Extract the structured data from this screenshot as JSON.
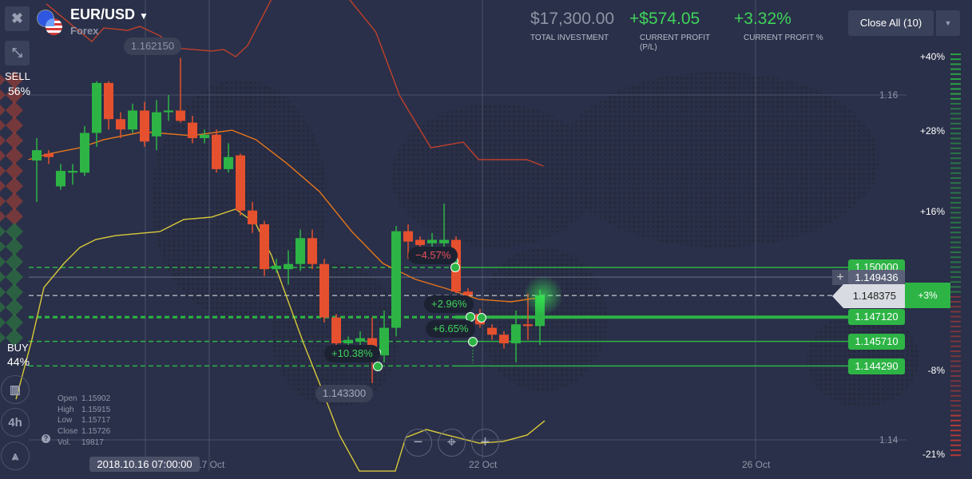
{
  "asset": {
    "name": "EUR/USD",
    "category": "Forex",
    "icon": "eur-usd-flags-icon"
  },
  "stats": {
    "total_investment": "$17,300.00",
    "total_investment_label": "TOTAL INVESTMENT",
    "current_profit": "+$574.05",
    "current_profit_label_1": "CURRENT PROFIT",
    "current_profit_label_2": "(P/L)",
    "current_profit_pct": "+3.32%",
    "current_profit_pct_label": "CURRENT PROFIT %"
  },
  "close_all": {
    "label": "Close All (10)",
    "dropdown_icon": "caret-down-icon"
  },
  "sentiment": {
    "sell_label": "SELL",
    "sell_pct": "56%",
    "buy_label": "BUY",
    "buy_pct": "44%",
    "sell_fraction": 0.56,
    "buy_fraction": 0.44
  },
  "colors": {
    "up": "#2db445",
    "down": "#e5502e",
    "ema": "#e8761c",
    "upper_band": "#c0402c",
    "lower_band": "#d9c93a",
    "background": "#2a3049"
  },
  "sidebar_tools": {
    "chart_type": "candles-chart-icon",
    "timeframe": "4h",
    "drawing": "compass-drawing-icon"
  },
  "ohlc": {
    "open_label": "Open",
    "open": "1.15902",
    "high_label": "High",
    "high": "1.15915",
    "low_label": "Low",
    "low": "1.15717",
    "close_label": "Close",
    "close": "1.15726",
    "vol_label": "Vol.",
    "vol": "19817"
  },
  "crosshair_time": "2018.10.16 07:00:00",
  "x_axis": {
    "labels": [
      "17 Oct",
      "22 Oct",
      "26 Oct"
    ]
  },
  "y_axis": {
    "labels": [
      "1.16",
      "1.14"
    ],
    "values": [
      1.16,
      1.14
    ]
  },
  "high_label": "1.162150",
  "low_label": "1.143300",
  "price_levels": [
    {
      "label": "1.150000",
      "value": 1.15,
      "type": "deal"
    },
    {
      "label": "1.149436",
      "value": 1.149436,
      "type": "crosshair"
    },
    {
      "label": "1.147120",
      "value": 1.14712,
      "type": "deal"
    },
    {
      "label": "1.145710",
      "value": 1.14571,
      "type": "deal"
    },
    {
      "label": "1.144290",
      "value": 1.14429,
      "type": "deal"
    }
  ],
  "current_price": {
    "label": "1.148375",
    "value": 1.148375,
    "profit": "+3%"
  },
  "profit_scale": [
    "+40%",
    "+28%",
    "+16%",
    "-8%",
    "-21%"
  ],
  "deals": [
    {
      "label": "−4.57%",
      "color": "#e5505a"
    },
    {
      "label": "+2.96%",
      "color": "#3fd35a"
    },
    {
      "label": "+6.65%",
      "color": "#3fd35a"
    },
    {
      "label": "+10.38%",
      "color": "#3fd35a"
    }
  ],
  "zoom_controls": {
    "zoom_out": "−",
    "center": "crosshair-center-icon",
    "zoom_in": "+"
  },
  "chart_data": {
    "type": "candlestick",
    "ohlc": [
      [
        1.1562,
        1.1575,
        1.1538,
        1.1568
      ],
      [
        1.1566,
        1.1568,
        1.156,
        1.1564
      ],
      [
        1.1547,
        1.156,
        1.1545,
        1.1556
      ],
      [
        1.1555,
        1.156,
        1.1548,
        1.1556
      ],
      [
        1.1555,
        1.1582,
        1.1553,
        1.1578
      ],
      [
        1.1578,
        1.1608,
        1.157,
        1.1607
      ],
      [
        1.1607,
        1.1608,
        1.158,
        1.1586
      ],
      [
        1.1586,
        1.159,
        1.1575,
        1.158
      ],
      [
        1.158,
        1.1595,
        1.1578,
        1.1591
      ],
      [
        1.1591,
        1.1596,
        1.157,
        1.1573
      ],
      [
        1.1576,
        1.1597,
        1.1568,
        1.159
      ],
      [
        1.159,
        1.16,
        1.1585,
        1.1591
      ],
      [
        1.1591,
        1.16215,
        1.1584,
        1.1585
      ],
      [
        1.1584,
        1.1588,
        1.1572,
        1.1575
      ],
      [
        1.1575,
        1.158,
        1.1572,
        1.1577
      ],
      [
        1.1577,
        1.158,
        1.1555,
        1.1557
      ],
      [
        1.1557,
        1.1572,
        1.1555,
        1.1564
      ],
      [
        1.1565,
        1.1566,
        1.153,
        1.1533
      ],
      [
        1.1533,
        1.1538,
        1.152,
        1.1525
      ],
      [
        1.1525,
        1.1527,
        1.1495,
        1.1499
      ],
      [
        1.1499,
        1.1505,
        1.1497,
        1.1501
      ],
      [
        1.1499,
        1.151,
        1.149,
        1.1502
      ],
      [
        1.1502,
        1.1522,
        1.1498,
        1.1517
      ],
      [
        1.1517,
        1.1522,
        1.1499,
        1.1502
      ],
      [
        1.1502,
        1.1505,
        1.1468,
        1.1471
      ],
      [
        1.1471,
        1.1473,
        1.145,
        1.1456
      ],
      [
        1.1456,
        1.146,
        1.1452,
        1.1458
      ],
      [
        1.1457,
        1.1463,
        1.1453,
        1.1459
      ],
      [
        1.1459,
        1.1471,
        1.1433,
        1.1453
      ],
      [
        1.1449,
        1.1475,
        1.1445,
        1.1465
      ],
      [
        1.1465,
        1.1524,
        1.146,
        1.1521
      ],
      [
        1.1521,
        1.1525,
        1.1505,
        1.1515
      ],
      [
        1.1516,
        1.1518,
        1.1508,
        1.1513
      ],
      [
        1.1514,
        1.152,
        1.151,
        1.1516
      ],
      [
        1.1514,
        1.1537,
        1.1508,
        1.1516
      ],
      [
        1.1516,
        1.1518,
        1.1485,
        1.1486
      ],
      [
        1.1486,
        1.1488,
        1.148,
        1.1484
      ],
      [
        1.1473,
        1.1476,
        1.1465,
        1.1467
      ],
      [
        1.1465,
        1.1467,
        1.1458,
        1.1461
      ],
      [
        1.1461,
        1.1463,
        1.1453,
        1.1456
      ],
      [
        1.1456,
        1.1475,
        1.1445,
        1.1467
      ],
      [
        1.1467,
        1.1485,
        1.1458,
        1.1466
      ],
      [
        1.1466,
        1.1487,
        1.1455,
        1.14838
      ]
    ],
    "ema": [
      [
        -0.7,
        1.15625
      ],
      [
        0.9,
        1.15657
      ],
      [
        3.6,
        1.15694
      ],
      [
        5.6,
        1.15741
      ],
      [
        8.9,
        1.15787
      ],
      [
        12.9,
        1.15764
      ],
      [
        16.3,
        1.15796
      ],
      [
        18.3,
        1.15741
      ],
      [
        20.9,
        1.15602
      ],
      [
        23.6,
        1.1544
      ],
      [
        26.3,
        1.15208
      ],
      [
        28.9,
        1.15023
      ],
      [
        31.6,
        1.14931
      ],
      [
        34.3,
        1.14875
      ],
      [
        36.9,
        1.14815
      ],
      [
        39.6,
        1.14801
      ],
      [
        42.3,
        1.14829
      ]
    ],
    "upper_band": [
      [
        0.8,
        1.16528
      ],
      [
        4.6,
        1.1631
      ],
      [
        5.6,
        1.16389
      ],
      [
        7.6,
        1.16375
      ],
      [
        8.6,
        1.16398
      ],
      [
        10.3,
        1.16343
      ],
      [
        11.5,
        1.16273
      ],
      [
        14.6,
        1.16255
      ],
      [
        15.6,
        1.16264
      ],
      [
        16.6,
        1.16222
      ],
      [
        17.6,
        1.16287
      ],
      [
        19.9,
        1.16597
      ],
      [
        25.6,
        1.16597
      ],
      [
        28.3,
        1.16366
      ],
      [
        30.3,
        1.15995
      ],
      [
        32.9,
        1.15694
      ],
      [
        35.6,
        1.15727
      ],
      [
        36.9,
        1.15625
      ],
      [
        40.9,
        1.15625
      ],
      [
        42.3,
        1.15588
      ]
    ],
    "lower_band": [
      [
        -1.73,
        1.14236
      ],
      [
        -0.4,
        1.14583
      ],
      [
        0.6,
        1.14884
      ],
      [
        2.27,
        1.15023
      ],
      [
        3.6,
        1.15116
      ],
      [
        4.93,
        1.15162
      ],
      [
        6.6,
        1.15185
      ],
      [
        10.27,
        1.15208
      ],
      [
        12.27,
        1.15278
      ],
      [
        14.6,
        1.15292
      ],
      [
        16.6,
        1.15338
      ],
      [
        18.27,
        1.15255
      ],
      [
        19.6,
        1.15069
      ],
      [
        20.93,
        1.14815
      ],
      [
        22.27,
        1.1456
      ],
      [
        23.6,
        1.14329
      ],
      [
        25.27,
        1.14028
      ],
      [
        26.93,
        1.13819
      ],
      [
        29.93,
        1.13819
      ],
      [
        30.8,
        1.14014
      ],
      [
        32.53,
        1.1406
      ],
      [
        34.27,
        1.14028
      ],
      [
        36.93,
        1.13981
      ],
      [
        38.93,
        1.13991
      ],
      [
        40.93,
        1.14028
      ],
      [
        42.4,
        1.14111
      ]
    ],
    "ylim": [
      1.139,
      1.165
    ]
  }
}
